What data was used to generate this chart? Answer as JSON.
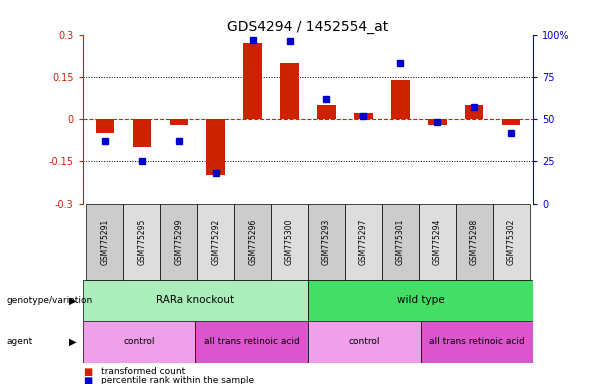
{
  "title": "GDS4294 / 1452554_at",
  "samples": [
    "GSM775291",
    "GSM775295",
    "GSM775299",
    "GSM775292",
    "GSM775296",
    "GSM775300",
    "GSM775293",
    "GSM775297",
    "GSM775301",
    "GSM775294",
    "GSM775298",
    "GSM775302"
  ],
  "transformed_count": [
    -0.05,
    -0.1,
    -0.02,
    -0.2,
    0.27,
    0.2,
    0.05,
    0.02,
    0.14,
    -0.02,
    0.05,
    -0.02
  ],
  "percentile_rank": [
    37,
    25,
    37,
    18,
    97,
    96,
    62,
    52,
    83,
    48,
    57,
    42
  ],
  "ylim_left": [
    -0.3,
    0.3
  ],
  "ylim_right": [
    0,
    100
  ],
  "yticks_left": [
    -0.3,
    -0.15,
    0,
    0.15,
    0.3
  ],
  "yticks_right": [
    0,
    25,
    50,
    75,
    100
  ],
  "bar_color": "#cc2200",
  "dot_color": "#0000cc",
  "zero_line_color": "#cc2200",
  "grid_color": "#000000",
  "genotype_groups": [
    {
      "label": "RARa knockout",
      "start": 0,
      "end": 6,
      "color": "#aaeebb"
    },
    {
      "label": "wild type",
      "start": 6,
      "end": 12,
      "color": "#44dd66"
    }
  ],
  "agent_groups": [
    {
      "label": "control",
      "start": 0,
      "end": 3,
      "color": "#f0a0e8"
    },
    {
      "label": "all trans retinoic acid",
      "start": 3,
      "end": 6,
      "color": "#dd55cc"
    },
    {
      "label": "control",
      "start": 6,
      "end": 9,
      "color": "#f0a0e8"
    },
    {
      "label": "all trans retinoic acid",
      "start": 9,
      "end": 12,
      "color": "#dd55cc"
    }
  ],
  "legend_items": [
    {
      "label": "transformed count",
      "color": "#cc2200"
    },
    {
      "label": "percentile rank within the sample",
      "color": "#0000cc"
    }
  ],
  "bg_color": "#ffffff",
  "title_fontsize": 10,
  "tick_fontsize": 7,
  "label_fontsize": 7,
  "sample_fontsize": 5.5
}
